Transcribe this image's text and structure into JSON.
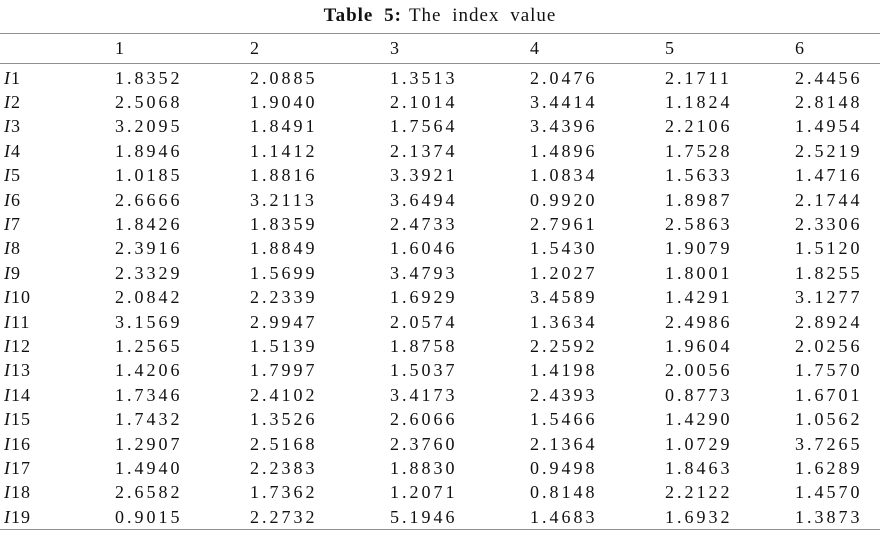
{
  "caption": {
    "label": "Table 5:",
    "text": "The index value"
  },
  "table": {
    "columns": [
      "1",
      "2",
      "3",
      "4",
      "5",
      "6"
    ],
    "rows": [
      {
        "prefix": "I",
        "num": "1",
        "values": [
          "1.8352",
          "2.0885",
          "1.3513",
          "2.0476",
          "2.1711",
          "2.4456"
        ]
      },
      {
        "prefix": "I",
        "num": "2",
        "values": [
          "2.5068",
          "1.9040",
          "2.1014",
          "3.4414",
          "1.1824",
          "2.8148"
        ]
      },
      {
        "prefix": "I",
        "num": "3",
        "values": [
          "3.2095",
          "1.8491",
          "1.7564",
          "3.4396",
          "2.2106",
          "1.4954"
        ]
      },
      {
        "prefix": "I",
        "num": "4",
        "values": [
          "1.8946",
          "1.1412",
          "2.1374",
          "1.4896",
          "1.7528",
          "2.5219"
        ]
      },
      {
        "prefix": "I",
        "num": "5",
        "values": [
          "1.0185",
          "1.8816",
          "3.3921",
          "1.0834",
          "1.5633",
          "1.4716"
        ]
      },
      {
        "prefix": "I",
        "num": "6",
        "values": [
          "2.6666",
          "3.2113",
          "3.6494",
          "0.9920",
          "1.8987",
          "2.1744"
        ]
      },
      {
        "prefix": "I",
        "num": "7",
        "values": [
          "1.8426",
          "1.8359",
          "2.4733",
          "2.7961",
          "2.5863",
          "2.3306"
        ]
      },
      {
        "prefix": "I",
        "num": "8",
        "values": [
          "2.3916",
          "1.8849",
          "1.6046",
          "1.5430",
          "1.9079",
          "1.5120"
        ]
      },
      {
        "prefix": "I",
        "num": "9",
        "values": [
          "2.3329",
          "1.5699",
          "3.4793",
          "1.2027",
          "1.8001",
          "1.8255"
        ]
      },
      {
        "prefix": "I",
        "num": "10",
        "values": [
          "2.0842",
          "2.2339",
          "1.6929",
          "3.4589",
          "1.4291",
          "3.1277"
        ]
      },
      {
        "prefix": "I",
        "num": "11",
        "values": [
          "3.1569",
          "2.9947",
          "2.0574",
          "1.3634",
          "2.4986",
          "2.8924"
        ]
      },
      {
        "prefix": "I",
        "num": "12",
        "values": [
          "1.2565",
          "1.5139",
          "1.8758",
          "2.2592",
          "1.9604",
          "2.0256"
        ]
      },
      {
        "prefix": "I",
        "num": "13",
        "values": [
          "1.4206",
          "1.7997",
          "1.5037",
          "1.4198",
          "2.0056",
          "1.7570"
        ]
      },
      {
        "prefix": "I",
        "num": "14",
        "values": [
          "1.7346",
          "2.4102",
          "3.4173",
          "2.4393",
          "0.8773",
          "1.6701"
        ]
      },
      {
        "prefix": "I",
        "num": "15",
        "values": [
          "1.7432",
          "1.3526",
          "2.6066",
          "1.5466",
          "1.4290",
          "1.0562"
        ]
      },
      {
        "prefix": "I",
        "num": "16",
        "values": [
          "1.2907",
          "2.5168",
          "2.3760",
          "2.1364",
          "1.0729",
          "3.7265"
        ]
      },
      {
        "prefix": "I",
        "num": "17",
        "values": [
          "1.4940",
          "2.2383",
          "1.8830",
          "0.9498",
          "1.8463",
          "1.6289"
        ]
      },
      {
        "prefix": "I",
        "num": "18",
        "values": [
          "2.6582",
          "1.7362",
          "1.2071",
          "0.8148",
          "2.2122",
          "1.4570"
        ]
      },
      {
        "prefix": "I",
        "num": "19",
        "values": [
          "0.9015",
          "2.2732",
          "5.1946",
          "1.4683",
          "1.6932",
          "1.3873"
        ]
      }
    ]
  },
  "colors": {
    "text": "#111111",
    "rule": "#8f8f8f",
    "background": "#ffffff"
  }
}
